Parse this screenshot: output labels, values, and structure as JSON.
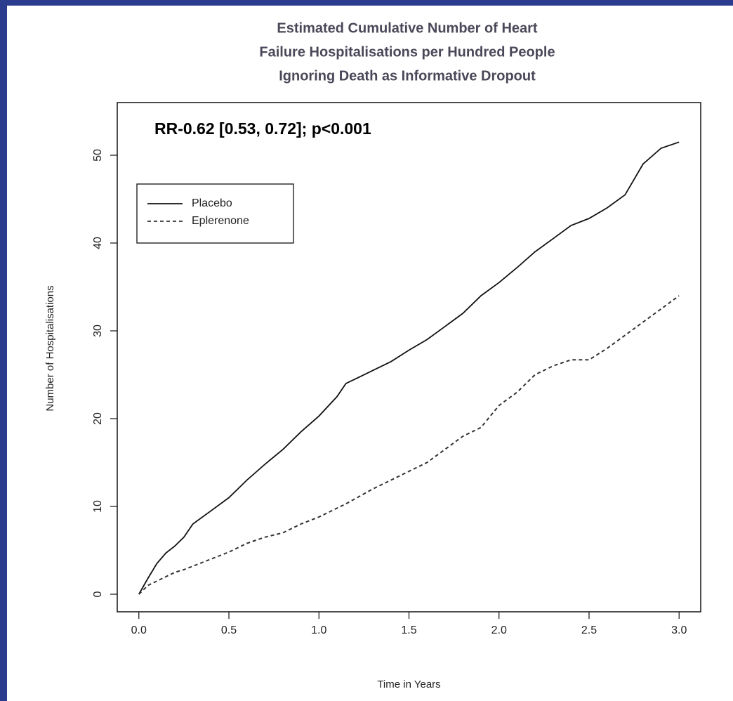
{
  "chart_data": {
    "type": "line",
    "title": [
      "Estimated Cumulative Number of Heart",
      "Failure Hospitalisations per Hundred People",
      "Ignoring Death as Informative Dropout"
    ],
    "annotation": "RR-0.62 [0.53, 0.72]; p<0.001",
    "xlabel": "Time in Years",
    "ylabel": "Number of Hospitalisations",
    "x": [
      0,
      0.05,
      0.1,
      0.15,
      0.2,
      0.25,
      0.3,
      0.4,
      0.5,
      0.6,
      0.7,
      0.8,
      0.9,
      1.0,
      1.1,
      1.15,
      1.3,
      1.4,
      1.5,
      1.6,
      1.7,
      1.8,
      1.9,
      2.0,
      2.1,
      2.2,
      2.3,
      2.4,
      2.5,
      2.6,
      2.7,
      2.8,
      2.9,
      3.0
    ],
    "series": [
      {
        "name": "Placebo",
        "color": "#111111",
        "linestyle": "solid",
        "values": [
          0,
          1.8,
          3.5,
          4.7,
          5.5,
          6.5,
          8,
          9.5,
          11,
          13,
          14.8,
          16.5,
          18.5,
          20.3,
          22.5,
          24,
          25.5,
          26.5,
          27.8,
          29,
          30.5,
          32,
          34,
          35.5,
          37.2,
          39,
          40.5,
          42,
          42.8,
          44,
          45.5,
          49,
          50.8,
          51.5
        ]
      },
      {
        "name": "Eplerenone",
        "color": "#333333",
        "linestyle": "dashed",
        "values": [
          0,
          1,
          1.5,
          2,
          2.5,
          2.8,
          3.2,
          4,
          4.8,
          5.8,
          6.5,
          7,
          8,
          8.8,
          9.8,
          10.3,
          12,
          13,
          14,
          15,
          16.5,
          18,
          19,
          21.5,
          23,
          25,
          26,
          26.7,
          26.7,
          28,
          29.5,
          31,
          32.5,
          34
        ]
      }
    ],
    "xlim": [
      -0.12,
      3.12
    ],
    "ylim": [
      -2,
      56
    ],
    "xticks": [
      {
        "value": 0,
        "label": "0.0"
      },
      0.5,
      {
        "value": 1,
        "label": "1.0"
      },
      1.5,
      {
        "value": 2,
        "label": "2.0"
      },
      2.5,
      {
        "value": 3,
        "label": "3.0"
      }
    ],
    "yticks": [
      0,
      10,
      20,
      30,
      40,
      50
    ],
    "legend": "top-left",
    "grid": false
  }
}
